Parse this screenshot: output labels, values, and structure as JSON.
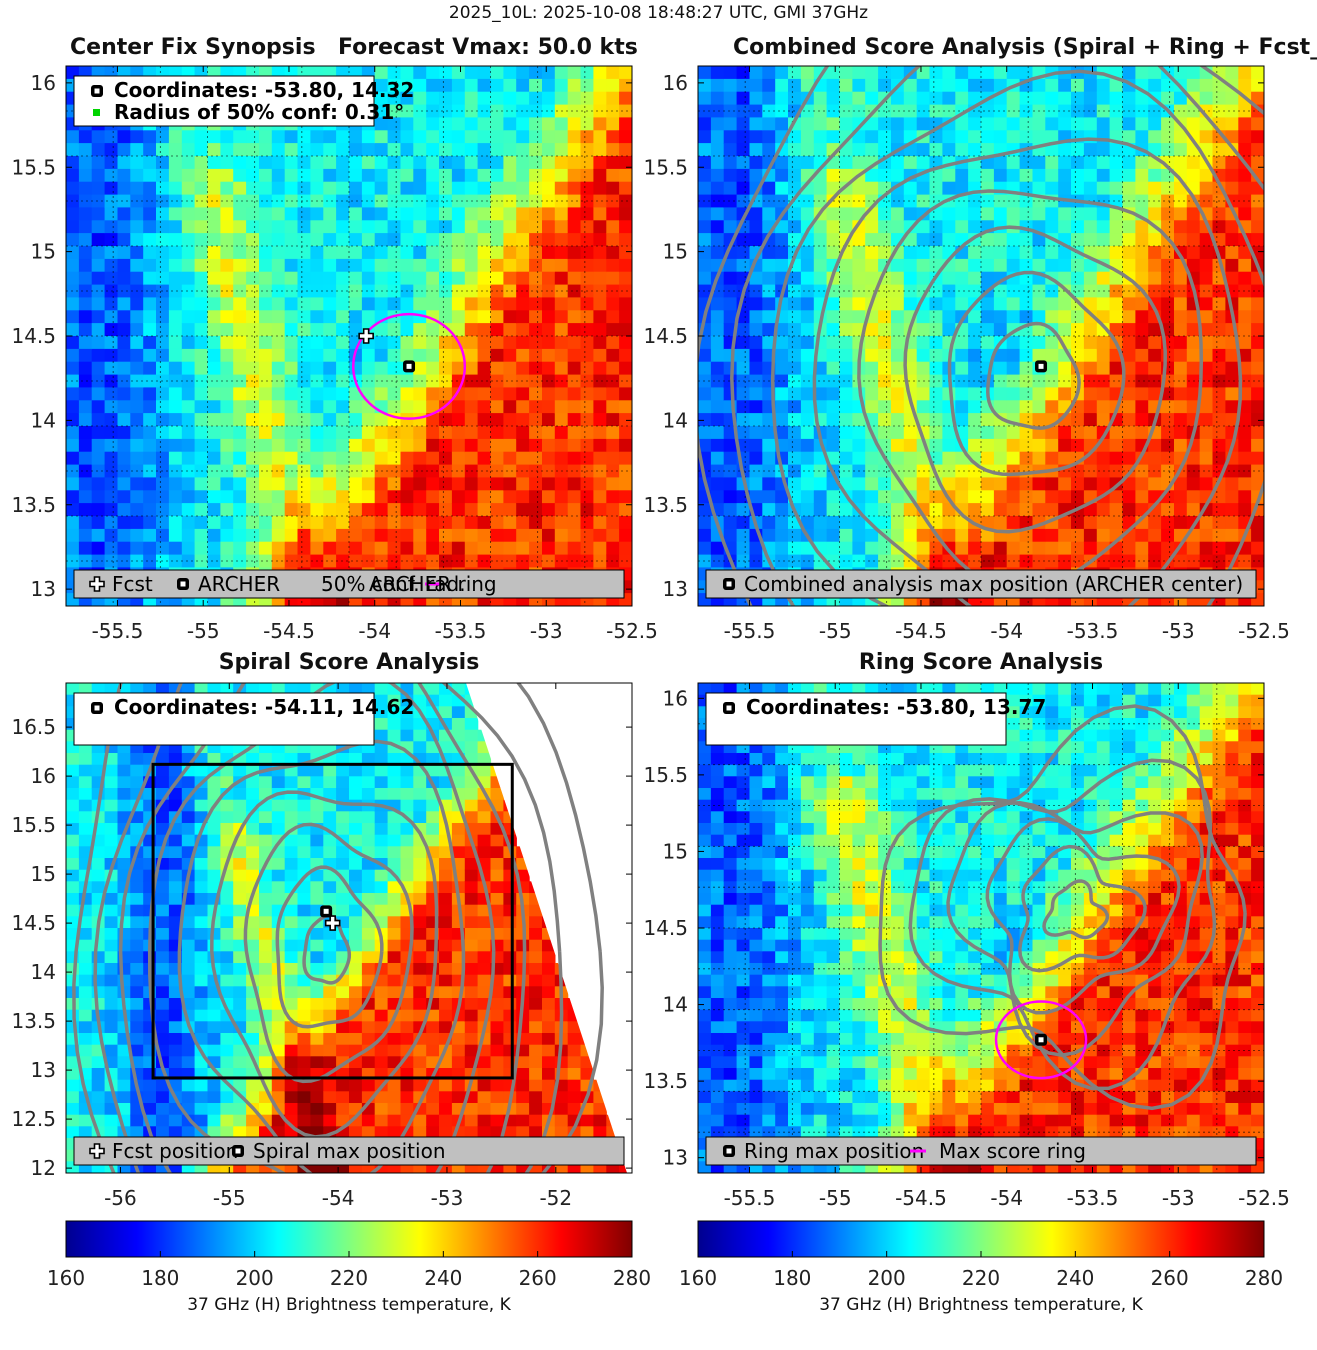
{
  "figure": {
    "suptitle": "2025_10L: 2025-10-08 18:48:27 UTC, GMI 37GHz"
  },
  "colors": {
    "archer_marker": "#000000",
    "conf_radius": "#00d400",
    "ring": "#ff00ff",
    "contour": "#808080",
    "legend_bg": "#c0c0c0",
    "box": "#000000"
  },
  "chart_data": [
    {
      "type": "heatmap",
      "title_left": "Center Fix Synopsis",
      "title_right": "Forecast Vmax: 50.0 kts",
      "xlim": [
        -55.8,
        -52.5
      ],
      "ylim": [
        12.9,
        16.1
      ],
      "xticks": [
        "-55.5",
        "-55",
        "-54.5",
        "-54",
        "-53.5",
        "-53",
        "-52.5"
      ],
      "yticks": [
        "13",
        "13.5",
        "14",
        "14.5",
        "15",
        "15.5",
        "16"
      ],
      "info": [
        "Coordinates: -53.80, 14.32",
        "Radius of 50% conf: 0.31°"
      ],
      "archer_center": [
        -53.8,
        14.32
      ],
      "fcst_position": [
        -54.05,
        14.5
      ],
      "ring_center": [
        -53.8,
        14.32
      ],
      "ring_radius_deg": 0.31,
      "legend": [
        "Fcst",
        "ARCHER",
        "50% conf. rad.",
        "ARCHER ring"
      ]
    },
    {
      "type": "heatmap",
      "title": "Combined Score Analysis (Spiral + Ring + Fcst_Pe",
      "xlim": [
        -55.8,
        -52.5
      ],
      "ylim": [
        12.9,
        16.1
      ],
      "xticks": [
        "-55.5",
        "-55",
        "-54.5",
        "-54",
        "-53.5",
        "-53",
        "-52.5"
      ],
      "yticks": [
        "13",
        "13.5",
        "14",
        "14.5",
        "15",
        "15.5",
        "16"
      ],
      "archer_center": [
        -53.8,
        14.32
      ],
      "contour_center": [
        -53.85,
        14.25
      ],
      "legend": [
        "Combined analysis max position (ARCHER center)"
      ]
    },
    {
      "type": "heatmap",
      "title": "Spiral Score Analysis",
      "xlim": [
        -56.5,
        -51.3
      ],
      "ylim": [
        11.95,
        16.95
      ],
      "xticks": [
        "-56",
        "-55",
        "-54",
        "-53",
        "-52"
      ],
      "yticks": [
        "12",
        "12.5",
        "13",
        "13.5",
        "14",
        "14.5",
        "15",
        "15.5",
        "16",
        "16.5"
      ],
      "info": [
        "Coordinates: -54.11, 14.62"
      ],
      "spiral_max": [
        -54.11,
        14.62
      ],
      "fcst_position": [
        -54.05,
        14.5
      ],
      "search_box": {
        "lon": [
          -55.7,
          -52.4
        ],
        "lat": [
          12.92,
          16.12
        ]
      },
      "legend": [
        "Fcst position",
        "Spiral max position"
      ]
    },
    {
      "type": "heatmap",
      "title": "Ring Score Analysis",
      "xlim": [
        -55.8,
        -52.5
      ],
      "ylim": [
        12.9,
        16.1
      ],
      "xticks": [
        "-55.5",
        "-55",
        "-54.5",
        "-54",
        "-53.5",
        "-53",
        "-52.5"
      ],
      "yticks": [
        "13",
        "13.5",
        "14",
        "14.5",
        "15",
        "15.5",
        "16"
      ],
      "info": [
        "Coordinates: -53.80, 13.77"
      ],
      "ring_max": [
        -53.8,
        13.77
      ],
      "ring_radius_deg": 0.25,
      "legend": [
        "Ring max position",
        "Max score ring"
      ]
    }
  ],
  "colorbar": {
    "min": 160,
    "max": 280,
    "ticks": [
      "160",
      "180",
      "200",
      "220",
      "240",
      "260",
      "280"
    ],
    "label": "37 GHz (H) Brightness temperature, K"
  }
}
